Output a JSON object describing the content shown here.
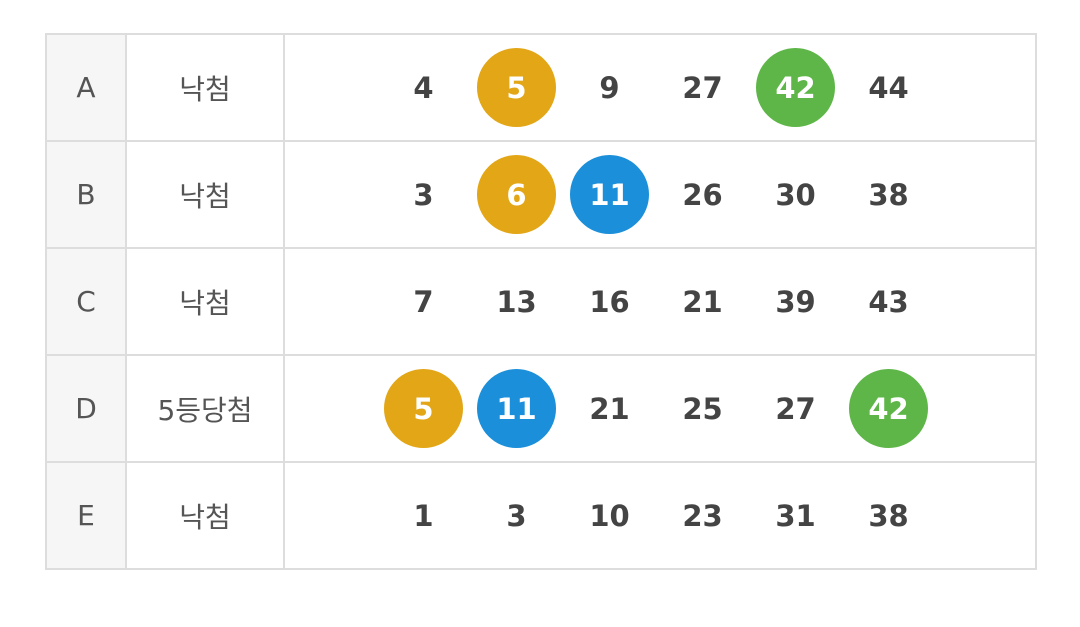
{
  "colors": {
    "yellow": "#e2a616",
    "blue": "#1b8fd9",
    "green": "#5db647"
  },
  "rows": [
    {
      "label": "A",
      "result": "낙첨",
      "numbers": [
        {
          "value": "4",
          "highlight": null
        },
        {
          "value": "5",
          "highlight": "yellow"
        },
        {
          "value": "9",
          "highlight": null
        },
        {
          "value": "27",
          "highlight": null
        },
        {
          "value": "42",
          "highlight": "green"
        },
        {
          "value": "44",
          "highlight": null
        }
      ]
    },
    {
      "label": "B",
      "result": "낙첨",
      "numbers": [
        {
          "value": "3",
          "highlight": null
        },
        {
          "value": "6",
          "highlight": "yellow"
        },
        {
          "value": "11",
          "highlight": "blue"
        },
        {
          "value": "26",
          "highlight": null
        },
        {
          "value": "30",
          "highlight": null
        },
        {
          "value": "38",
          "highlight": null
        }
      ]
    },
    {
      "label": "C",
      "result": "낙첨",
      "numbers": [
        {
          "value": "7",
          "highlight": null
        },
        {
          "value": "13",
          "highlight": null
        },
        {
          "value": "16",
          "highlight": null
        },
        {
          "value": "21",
          "highlight": null
        },
        {
          "value": "39",
          "highlight": null
        },
        {
          "value": "43",
          "highlight": null
        }
      ]
    },
    {
      "label": "D",
      "result": "5등당첨",
      "numbers": [
        {
          "value": "5",
          "highlight": "yellow"
        },
        {
          "value": "11",
          "highlight": "blue"
        },
        {
          "value": "21",
          "highlight": null
        },
        {
          "value": "25",
          "highlight": null
        },
        {
          "value": "27",
          "highlight": null
        },
        {
          "value": "42",
          "highlight": "green"
        }
      ]
    },
    {
      "label": "E",
      "result": "낙첨",
      "numbers": [
        {
          "value": "1",
          "highlight": null
        },
        {
          "value": "3",
          "highlight": null
        },
        {
          "value": "10",
          "highlight": null
        },
        {
          "value": "23",
          "highlight": null
        },
        {
          "value": "31",
          "highlight": null
        },
        {
          "value": "38",
          "highlight": null
        }
      ]
    }
  ]
}
